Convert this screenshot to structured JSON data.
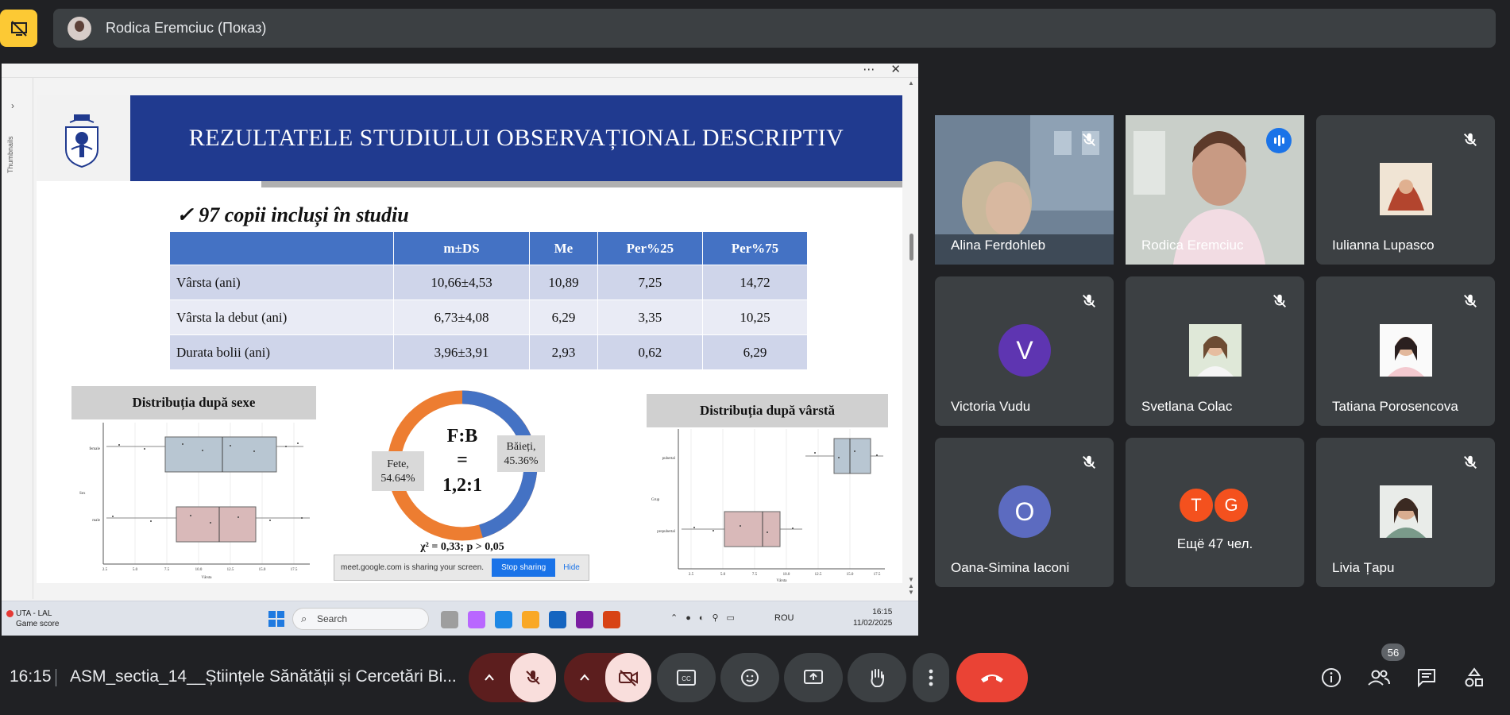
{
  "presenter_bar": {
    "name": "Rodica Eremciuc (Показ)"
  },
  "slide": {
    "title": "REZULTATELE STUDIULUI OBSERVAȚIONAL DESCRIPTIV",
    "subtitle": "✓ 97 copii incluși în studiu",
    "table": {
      "headers": [
        "",
        "m±DS",
        "Me",
        "Per%25",
        "Per%75"
      ],
      "rows": [
        [
          "Vârsta (ani)",
          "10,66±4,53",
          "10,89",
          "7,25",
          "14,72"
        ],
        [
          "Vârsta la debut (ani)",
          "6,73±4,08",
          "6,29",
          "3,35",
          "10,25"
        ],
        [
          "Durata bolii (ani)",
          "3,96±3,91",
          "2,93",
          "0,62",
          "6,29"
        ]
      ]
    },
    "sex_banner": "Distribuția după sexe",
    "age_banner": "Distribuția după vârstă",
    "donut": {
      "center_line1": "F:B",
      "center_line2": "=",
      "center_line3": "1,2:1",
      "label_girls": "Fete,",
      "label_girls_pct": "54.64%",
      "label_boys": "Băieți,",
      "label_boys_pct": "45.36%",
      "footnote": "χ² = 0,33; p > 0,05"
    },
    "sex_chart": {
      "cat_top": "female",
      "cat_bottom": "male",
      "ylabel": "Sex",
      "xlabel": "Vârsta",
      "ticks": [
        "2.5",
        "5.0",
        "7.5",
        "10.0",
        "12.5",
        "15.0",
        "17.5"
      ]
    },
    "age_chart": {
      "cat_top": "pubertal",
      "cat_bottom": "prepubertal",
      "ylabel": "Grup",
      "xlabel": "Vârsta",
      "ticks": [
        "2.5",
        "5.0",
        "7.5",
        "10.0",
        "12.5",
        "15.0",
        "17.5"
      ]
    }
  },
  "screen_ui": {
    "thumbnails_label": "Thumbnails",
    "share_note": "meet.google.com is sharing your screen.",
    "stop_sharing": "Stop sharing",
    "hide": "Hide"
  },
  "taskbar": {
    "game_title": "UTA - LAL",
    "game_sub": "Game score",
    "search": "Search",
    "lang": "ROU",
    "time": "16:15",
    "date": "11/02/2025"
  },
  "participants": [
    {
      "name": "Alina Ferdohleb",
      "kind": "video"
    },
    {
      "name": "Rodica Eremciuc",
      "kind": "video"
    },
    {
      "name": "Iulianna Lupasco",
      "kind": "photo"
    },
    {
      "name": "Victoria Vudu",
      "kind": "letter",
      "letter": "V",
      "color": "#5e35b1"
    },
    {
      "name": "Svetlana Colac",
      "kind": "photo"
    },
    {
      "name": "Tatiana Porosencova",
      "kind": "photo"
    },
    {
      "name": "Oana-Simina Iaconi",
      "kind": "letter",
      "letter": "O",
      "color": "#5c6bc0"
    },
    {
      "name": "Ещё 47 чел.",
      "kind": "more",
      "letters": [
        "T",
        "G"
      ],
      "color": "#f4511e"
    },
    {
      "name": "Livia Țapu",
      "kind": "photo"
    }
  ],
  "bottom_bar": {
    "time": "16:15",
    "meeting_title": "ASM_sectia_14__Științele Sănătății și Cercetări Bi...",
    "people_count": "56"
  },
  "colors": {
    "accent": "#8ab4f8",
    "hangup": "#ea4335",
    "slide_title_bg": "#203a8f",
    "table_header": "#4472c4"
  }
}
